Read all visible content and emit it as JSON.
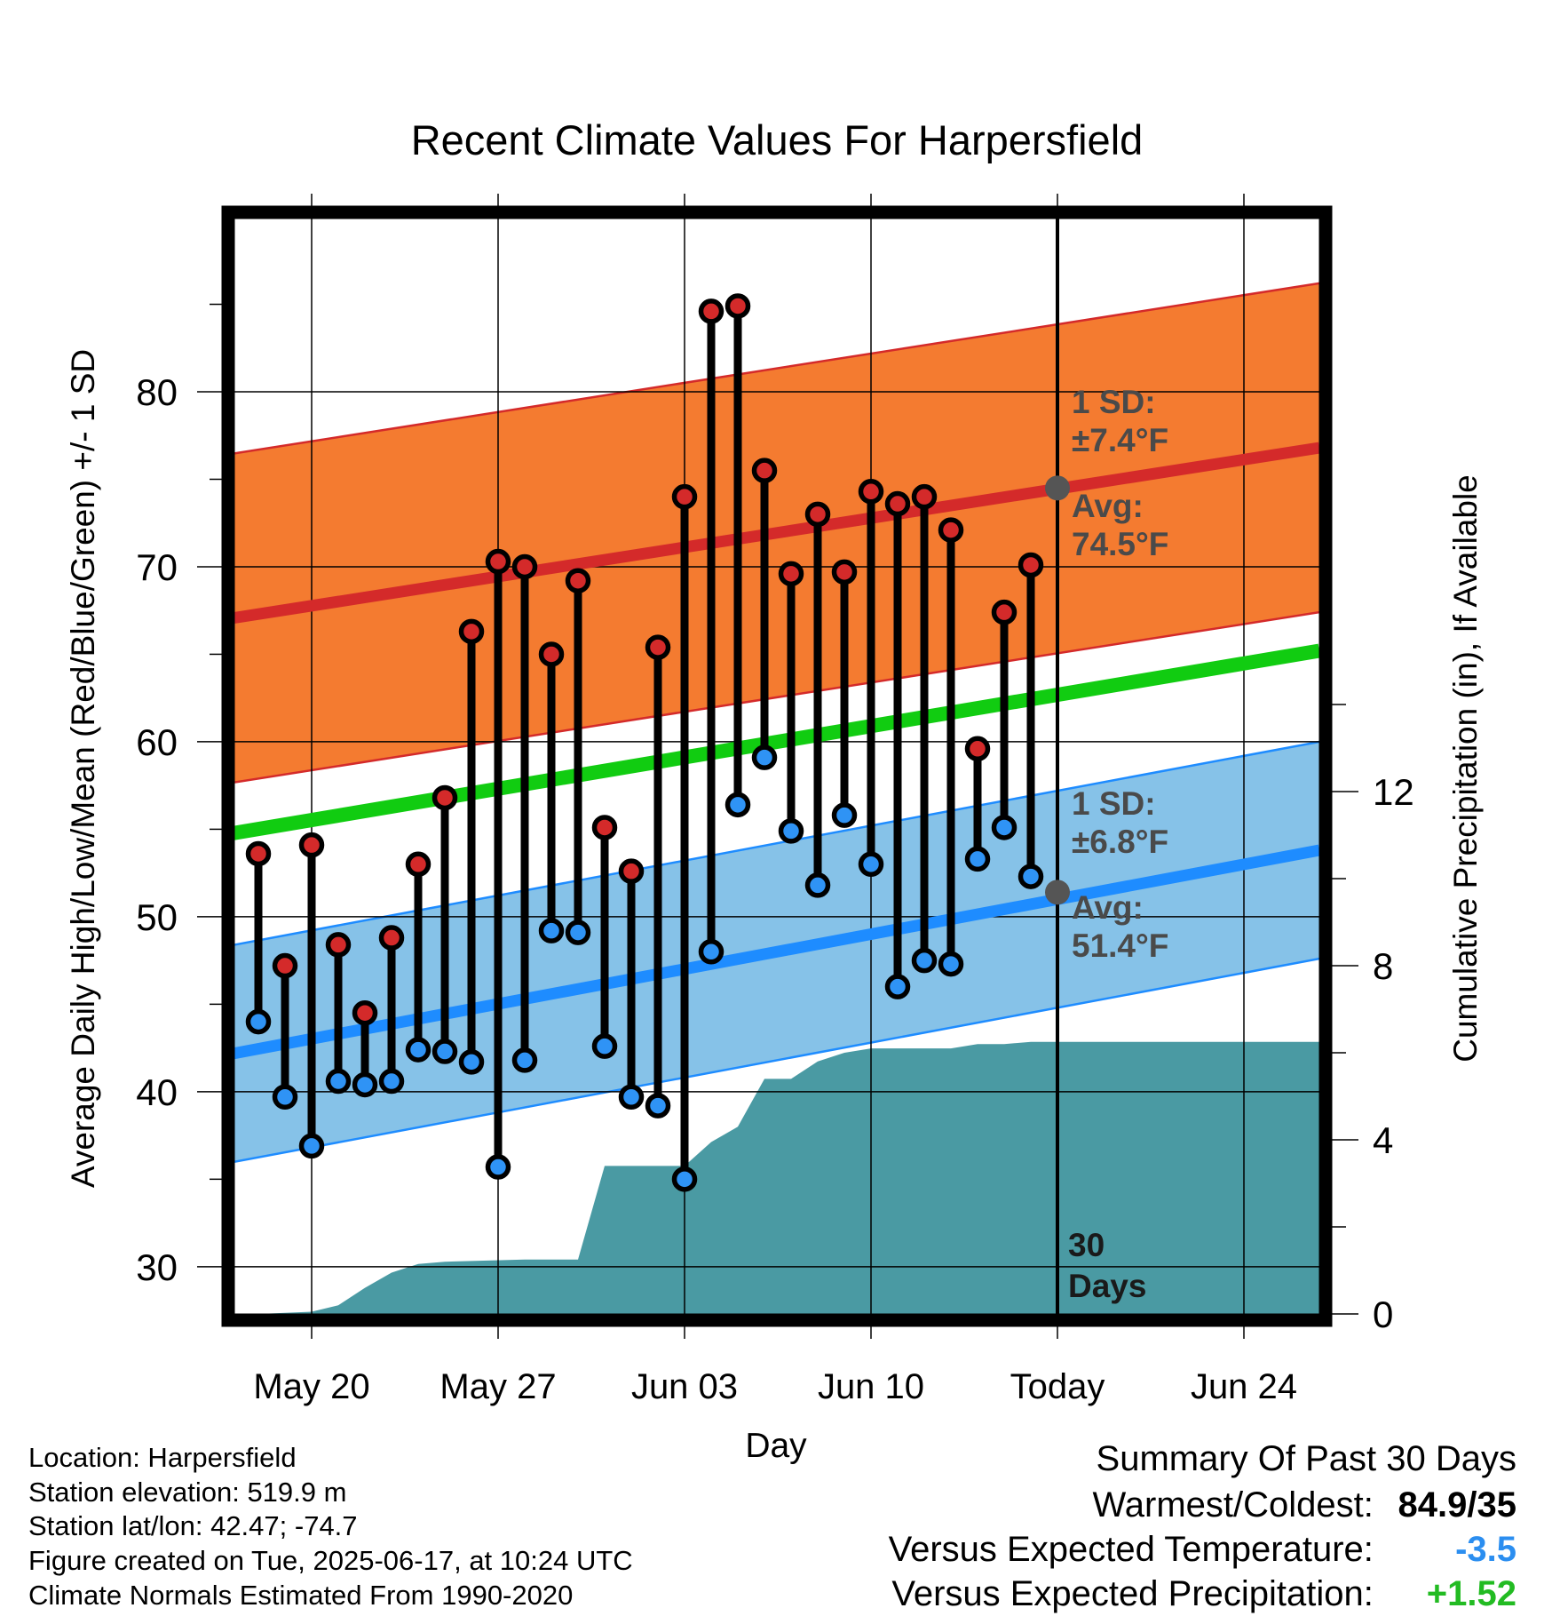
{
  "chart_data": {
    "type": "line",
    "title": "Recent Climate Values For Harpersfield",
    "xlabel": "Day",
    "ylabel": "Average Daily High/Low/Mean (Red/Blue/Green) +/- 1 SD",
    "y2label": "Cumulative Precipitation (in), If Available",
    "x_tick_labels": [
      "May 20",
      "May 27",
      "Jun 03",
      "Jun 10",
      "Today",
      "Jun 24"
    ],
    "y_ticks": [
      "30",
      "40",
      "50",
      "60",
      "70",
      "80"
    ],
    "y2_ticks": [
      "0",
      "4",
      "8",
      "12"
    ],
    "ylim": [
      27.3,
      89.9
    ],
    "y2lim": [
      0,
      25
    ],
    "series_colors": {
      "high_band": "#f47b30",
      "high_mean": "#d42a2a",
      "low_band": "#86c2e8",
      "low_mean": "#1e8cff",
      "mean": "#11cc11",
      "precip": "#4a9aa3",
      "high_dot": "#d42a2a",
      "low_dot": "#2f93f5"
    },
    "normals": {
      "high_mean": [
        67.0,
        76.8
      ],
      "high_sd": 9.4,
      "low_mean": [
        42.1,
        53.8
      ],
      "low_sd": 6.2,
      "mean": [
        54.7,
        65.2
      ]
    },
    "daily": {
      "days": [
        "May 18",
        "May 19",
        "May 20",
        "May 21",
        "May 22",
        "May 23",
        "May 24",
        "May 25",
        "May 26",
        "May 27",
        "May 28",
        "May 29",
        "May 30",
        "May 31",
        "Jun 01",
        "Jun 02",
        "Jun 03",
        "Jun 04",
        "Jun 05",
        "Jun 06",
        "Jun 07",
        "Jun 08",
        "Jun 09",
        "Jun 10",
        "Jun 11",
        "Jun 12",
        "Jun 13",
        "Jun 14",
        "Jun 15",
        "Jun 16"
      ],
      "high": [
        53.6,
        47.2,
        54.1,
        48.4,
        44.5,
        48.8,
        53.0,
        56.8,
        66.3,
        70.3,
        70.0,
        65.0,
        69.2,
        55.1,
        52.6,
        65.4,
        74.0,
        84.6,
        84.9,
        75.5,
        69.6,
        73.0,
        69.7,
        74.3,
        73.6,
        74.0,
        72.1,
        59.6,
        67.4,
        70.1
      ],
      "low": [
        44.0,
        39.7,
        36.9,
        40.6,
        40.4,
        40.6,
        42.4,
        42.3,
        41.7,
        35.7,
        41.8,
        49.2,
        49.1,
        42.6,
        39.7,
        39.2,
        35.0,
        48.0,
        56.4,
        59.1,
        54.9,
        51.8,
        55.8,
        53.0,
        46.0,
        47.5,
        47.3,
        53.3,
        55.1,
        52.3
      ]
    },
    "precip_cumulative": {
      "days": [
        "May 18",
        "May 20",
        "May 21",
        "May 22",
        "May 23",
        "May 24",
        "May 25",
        "May 28",
        "May 30",
        "May 31",
        "Jun 03",
        "Jun 04",
        "Jun 05",
        "Jun 06",
        "Jun 07",
        "Jun 08",
        "Jun 09",
        "Jun 10",
        "Jun 11",
        "Jun 12",
        "Jun 13",
        "Jun 14",
        "Jun 15",
        "Jun 16",
        "Jun 17",
        "Jun 26"
      ],
      "values": [
        0.0,
        0.05,
        0.2,
        0.6,
        0.95,
        1.15,
        1.2,
        1.25,
        1.25,
        3.4,
        3.4,
        3.95,
        4.3,
        5.4,
        5.4,
        5.8,
        6.0,
        6.1,
        6.1,
        6.1,
        6.1,
        6.2,
        6.2,
        6.25,
        6.25,
        6.25
      ]
    },
    "annotations": {
      "high_sd": "1 SD:",
      "high_sd_value": "±7.4°F",
      "high_avg": "Avg:",
      "high_avg_value": "74.5°F",
      "low_sd": "1 SD:",
      "low_sd_value": "±6.8°F",
      "low_avg": "Avg:",
      "low_avg_value": "51.4°F",
      "window_count": "30",
      "window_unit": "Days",
      "today_high_avg": 74.5,
      "today_low_avg": 51.4
    }
  },
  "info": {
    "location": "Location: Harpersfield",
    "elevation": "Station elevation: 519.9 m",
    "latlon": "Station lat/lon: 42.47; -74.7",
    "created": "Figure created on Tue, 2025-06-17, at 10:24 UTC",
    "normals": "Climate Normals Estimated From 1990-2020"
  },
  "summary": {
    "heading": "Summary Of Past 30 Days",
    "warmest_label": "Warmest/Coldest:",
    "warmest_value": "84.9/35",
    "temp_label": "Versus Expected Temperature:",
    "temp_value": "-3.5",
    "temp_color": "#2b8ef0",
    "precip_label": "Versus Expected Precipitation:",
    "precip_value": "+1.52",
    "precip_color": "#22bb22"
  }
}
